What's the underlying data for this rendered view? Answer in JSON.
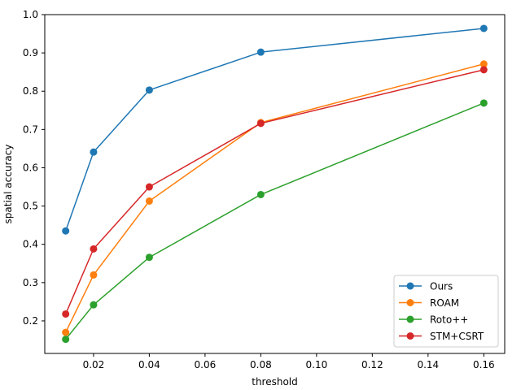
{
  "chart_data": {
    "type": "line",
    "title": "",
    "xlabel": "threshold",
    "ylabel": "spatial accuracy",
    "xlim": [
      0.0025,
      0.1675
    ],
    "ylim": [
      0.115,
      1.0
    ],
    "xticks": [
      0.02,
      0.04,
      0.06,
      0.08,
      0.1,
      0.12,
      0.14,
      0.16
    ],
    "xtick_labels": [
      "0.02",
      "0.04",
      "0.06",
      "0.08",
      "0.10",
      "0.12",
      "0.14",
      "0.16"
    ],
    "yticks": [
      0.2,
      0.3,
      0.4,
      0.5,
      0.6,
      0.7,
      0.8,
      0.9,
      1.0
    ],
    "ytick_labels": [
      "0.2",
      "0.3",
      "0.4",
      "0.5",
      "0.6",
      "0.7",
      "0.8",
      "0.9",
      "1.0"
    ],
    "grid": false,
    "legend_position": "lower-right",
    "x": [
      0.01,
      0.02,
      0.04,
      0.08,
      0.16
    ],
    "series": [
      {
        "name": "Ours",
        "color": "#1f77b4",
        "values": [
          0.435,
          0.641,
          0.803,
          0.902,
          0.964
        ]
      },
      {
        "name": "ROAM",
        "color": "#ff7f0e",
        "values": [
          0.17,
          0.32,
          0.513,
          0.718,
          0.871
        ]
      },
      {
        "name": "Roto++",
        "color": "#2ca02c",
        "values": [
          0.152,
          0.242,
          0.366,
          0.53,
          0.769
        ]
      },
      {
        "name": "STM+CSRT",
        "color": "#d62728",
        "values": [
          0.218,
          0.388,
          0.55,
          0.716,
          0.856
        ]
      }
    ]
  }
}
